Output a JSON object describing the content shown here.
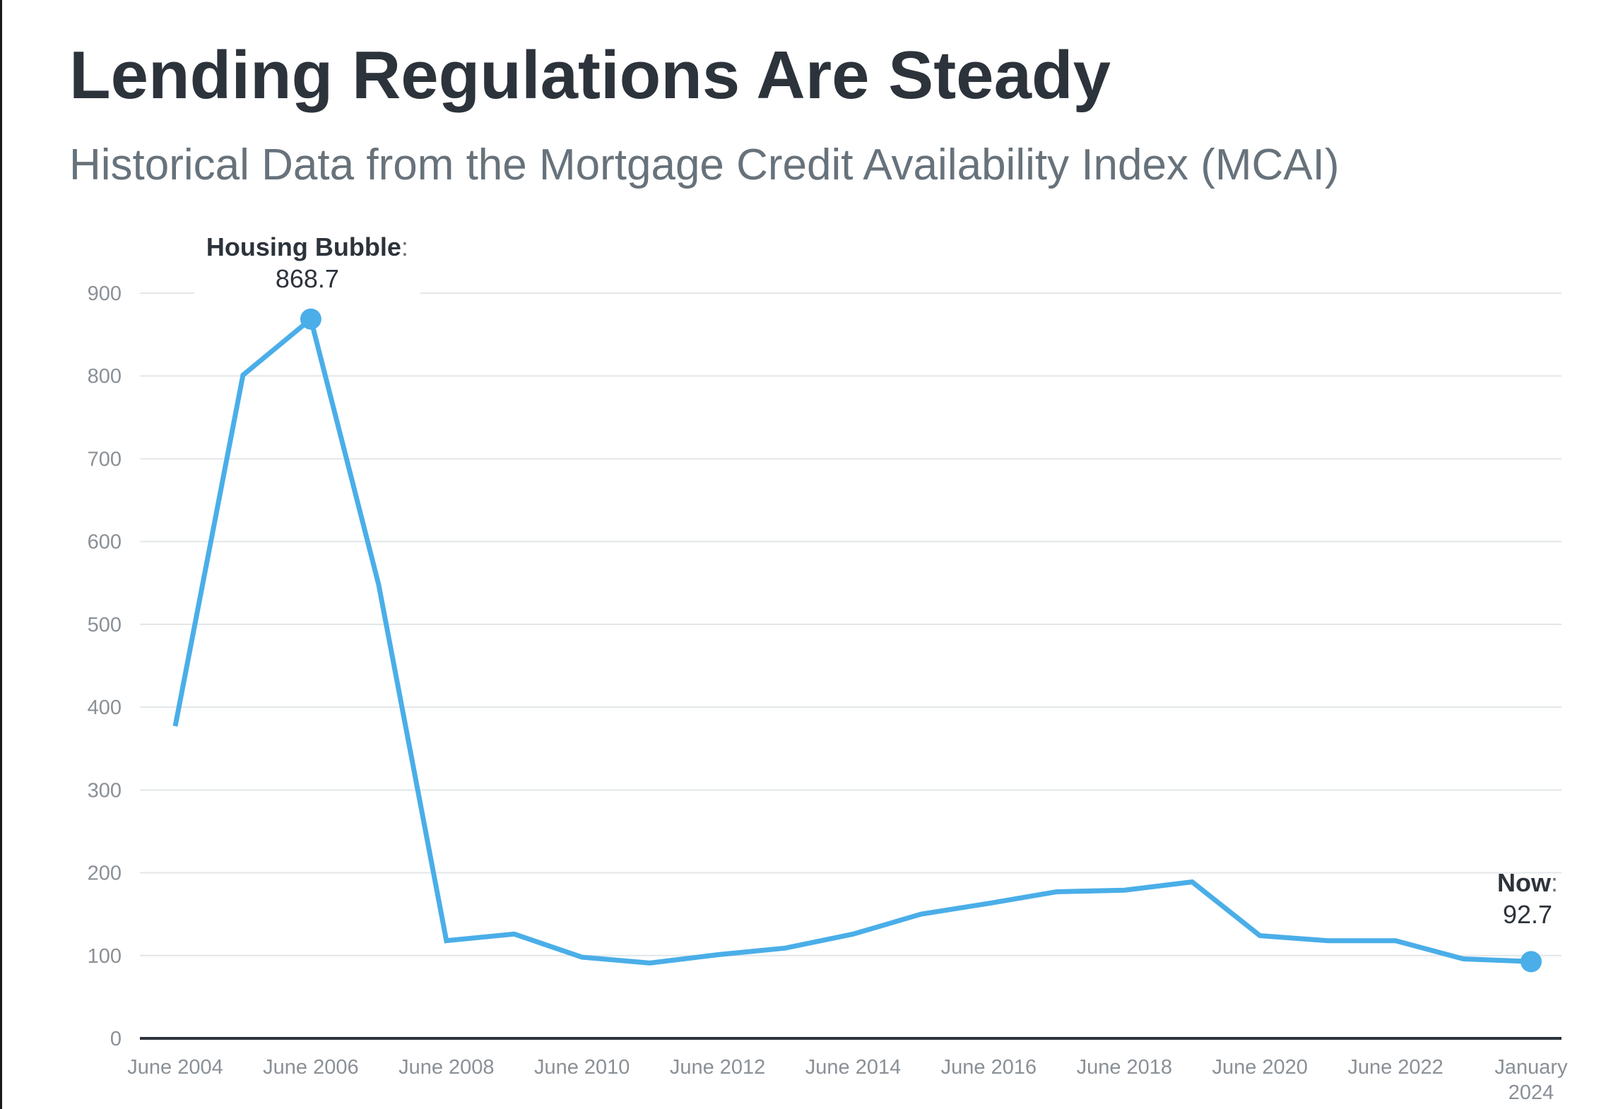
{
  "title": "Lending Regulations Are Steady",
  "subtitle": "Historical Data from the Mortgage Credit Availability Index (MCAI)",
  "chart_data": {
    "type": "line",
    "title": "Lending Regulations Are Steady",
    "subtitle": "Historical Data from the Mortgage Credit Availability Index (MCAI)",
    "xlabel": "",
    "ylabel": "",
    "ylim": [
      0,
      900
    ],
    "yticks": [
      "0",
      "100",
      "200",
      "300",
      "400",
      "500",
      "600",
      "700",
      "800",
      "900"
    ],
    "x_tick_labels": [
      {
        "lines": [
          "June 2004"
        ]
      },
      {
        "lines": [
          "June 2006"
        ]
      },
      {
        "lines": [
          "June 2008"
        ]
      },
      {
        "lines": [
          "June 2010"
        ]
      },
      {
        "lines": [
          "June 2012"
        ]
      },
      {
        "lines": [
          "June 2014"
        ]
      },
      {
        "lines": [
          "June 2016"
        ]
      },
      {
        "lines": [
          "June 2018"
        ]
      },
      {
        "lines": [
          "June 2020"
        ]
      },
      {
        "lines": [
          "June 2022"
        ]
      },
      {
        "lines": [
          "January",
          "2024"
        ]
      }
    ],
    "x": [
      "2004-06",
      "2005-06",
      "2006-06",
      "2007-06",
      "2008-06",
      "2009-06",
      "2010-06",
      "2011-06",
      "2012-06",
      "2013-06",
      "2014-06",
      "2015-06",
      "2016-06",
      "2017-06",
      "2018-06",
      "2019-06",
      "2020-06",
      "2021-06",
      "2022-06",
      "2023-06",
      "2024-01"
    ],
    "series": [
      {
        "values": [
          377,
          801,
          868.7,
          548,
          118,
          126,
          98,
          91,
          101,
          109,
          126,
          150,
          163,
          177,
          179,
          189,
          124,
          118,
          118,
          96,
          92.7
        ]
      }
    ],
    "grid": true,
    "color": "#4aaee8",
    "annotations": [
      {
        "index": 2,
        "label": "Housing Bubble",
        "suffix": ":",
        "value": "868.7"
      },
      {
        "index": 20,
        "label": "Now",
        "suffix": ":",
        "value": "92.7"
      }
    ]
  }
}
